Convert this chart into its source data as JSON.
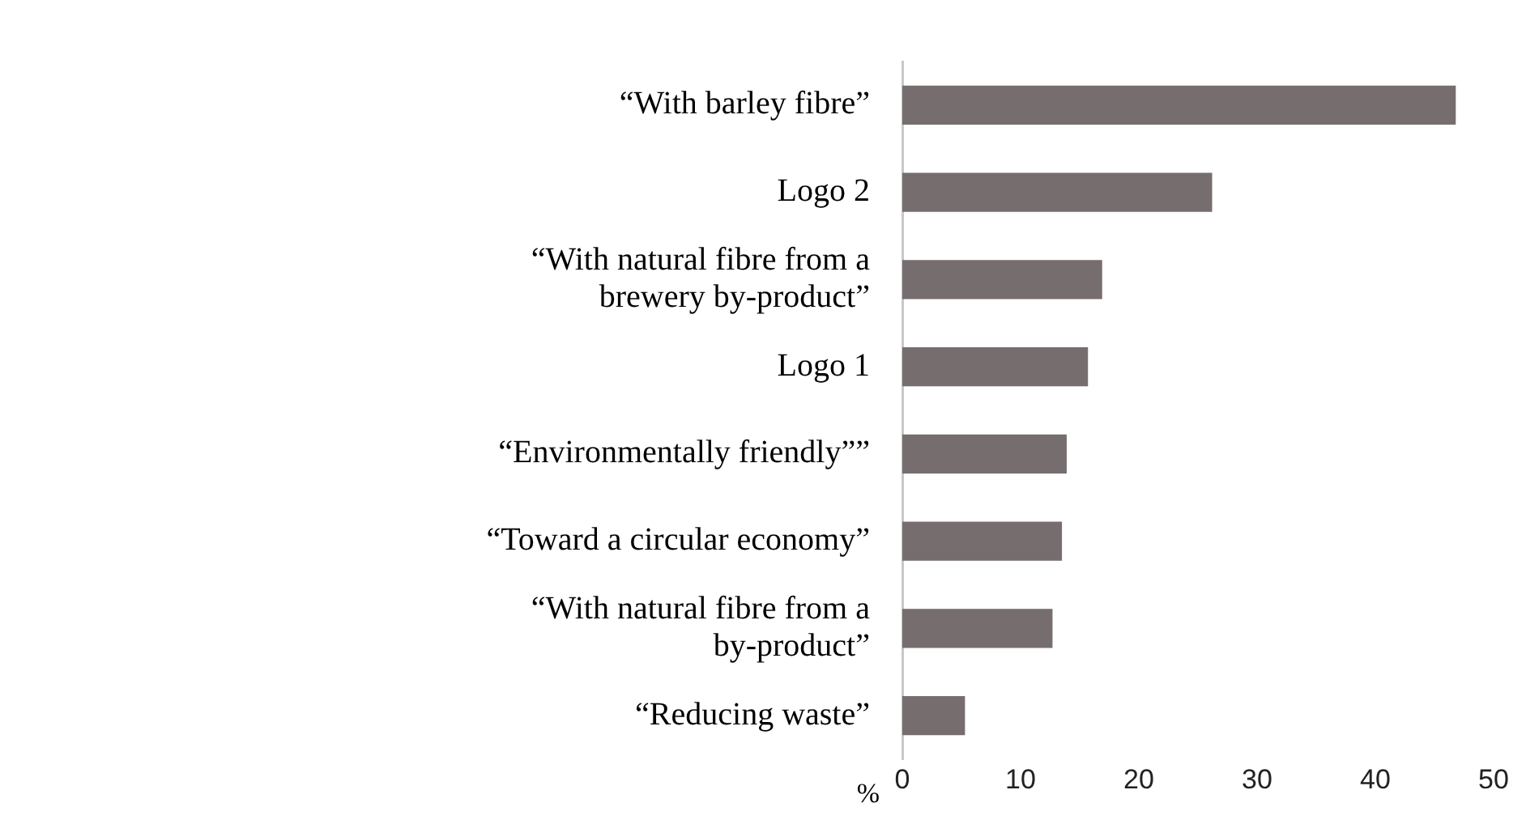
{
  "chart_data": {
    "type": "bar",
    "orientation": "horizontal",
    "xlabel": "%",
    "categories": [
      "“With barley fibre”",
      "Logo 2",
      "“With natural fibre from a brewery by-product”",
      "Logo 1",
      "“Environmentally friendly””",
      "“Toward a circular economy”",
      "“With natural fibre from a by-product”",
      "“Reducing waste”"
    ],
    "values": [
      46.8,
      26.2,
      16.9,
      15.7,
      13.9,
      13.5,
      12.7,
      5.3
    ],
    "color": "#766e6e",
    "xlim": [
      0,
      50
    ],
    "xticks": [
      0,
      10,
      20,
      30,
      40,
      50
    ],
    "grid": false,
    "legend": false
  }
}
